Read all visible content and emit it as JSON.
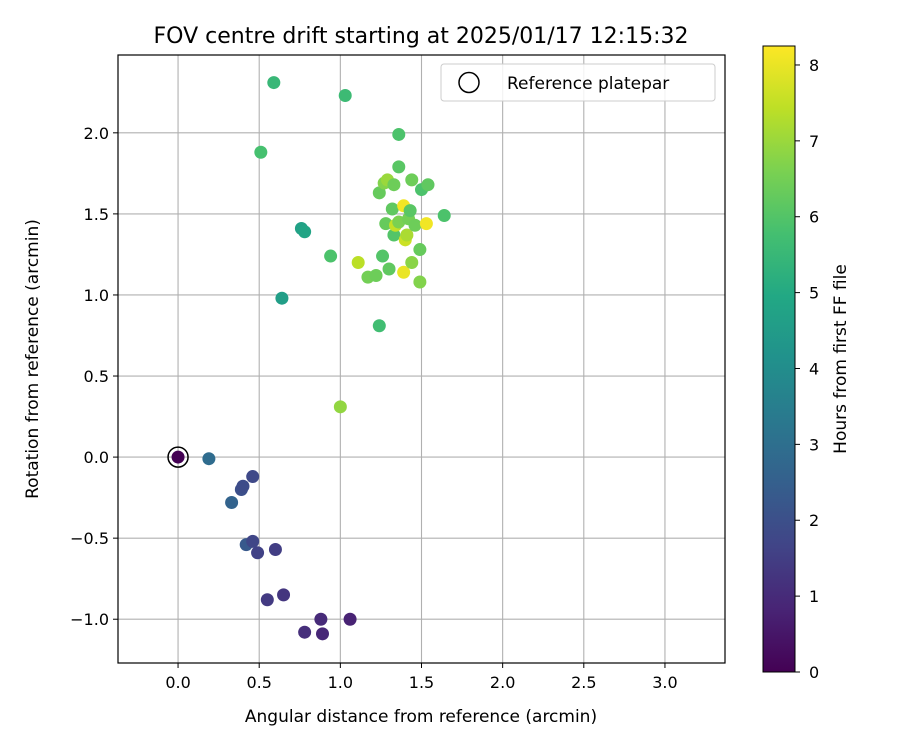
{
  "chart_data": {
    "type": "scatter",
    "title": "FOV centre drift starting at 2025/01/17 12:15:32",
    "xlabel": "Angular distance from reference (arcmin)",
    "ylabel": "Rotation from reference (arcmin)",
    "xlim": [
      -0.37,
      3.37
    ],
    "ylim": [
      -1.27,
      2.48
    ],
    "xticks": [
      0.0,
      0.5,
      1.0,
      1.5,
      2.0,
      2.5,
      3.0
    ],
    "xtick_labels": [
      "0.0",
      "0.5",
      "1.0",
      "1.5",
      "2.0",
      "2.5",
      "3.0"
    ],
    "yticks": [
      -1.0,
      -0.5,
      0.0,
      0.5,
      1.0,
      1.5,
      2.0
    ],
    "ytick_labels": [
      "−1.0",
      "−0.5",
      "0.0",
      "0.5",
      "1.0",
      "1.5",
      "2.0"
    ],
    "grid": true,
    "legend_position": "top-right",
    "legend": [
      {
        "label": "Reference platepar",
        "marker": "open-circle"
      }
    ],
    "colorbar": {
      "label": "Hours from first FF file",
      "range": [
        0,
        8.25
      ],
      "colormap": "viridis",
      "ticks": [
        0,
        1,
        2,
        3,
        4,
        5,
        6,
        7,
        8
      ],
      "tick_labels": [
        "0",
        "1",
        "2",
        "3",
        "4",
        "5",
        "6",
        "7",
        "8"
      ]
    },
    "reference_point": {
      "x": 0.0,
      "y": 0.0
    },
    "points": [
      {
        "x": 0.0,
        "y": 0.0,
        "hours": 0.0
      },
      {
        "x": 0.19,
        "y": -0.01,
        "hours": 2.9
      },
      {
        "x": 0.33,
        "y": -0.28,
        "hours": 2.6
      },
      {
        "x": 0.39,
        "y": -0.2,
        "hours": 2.0
      },
      {
        "x": 0.4,
        "y": -0.18,
        "hours": 1.9
      },
      {
        "x": 0.46,
        "y": -0.12,
        "hours": 1.8
      },
      {
        "x": 0.42,
        "y": -0.54,
        "hours": 2.3
      },
      {
        "x": 0.46,
        "y": -0.52,
        "hours": 1.7
      },
      {
        "x": 0.49,
        "y": -0.59,
        "hours": 1.6
      },
      {
        "x": 0.6,
        "y": -0.57,
        "hours": 1.5
      },
      {
        "x": 0.55,
        "y": -0.88,
        "hours": 1.4
      },
      {
        "x": 0.65,
        "y": -0.85,
        "hours": 1.3
      },
      {
        "x": 0.78,
        "y": -1.08,
        "hours": 1.1
      },
      {
        "x": 0.88,
        "y": -1.0,
        "hours": 1.0
      },
      {
        "x": 0.89,
        "y": -1.09,
        "hours": 0.9
      },
      {
        "x": 1.06,
        "y": -1.0,
        "hours": 0.8
      },
      {
        "x": 0.64,
        "y": 0.98,
        "hours": 4.6
      },
      {
        "x": 0.76,
        "y": 1.41,
        "hours": 4.7
      },
      {
        "x": 0.78,
        "y": 1.39,
        "hours": 4.8
      },
      {
        "x": 0.94,
        "y": 1.24,
        "hours": 5.9
      },
      {
        "x": 1.0,
        "y": 0.31,
        "hours": 6.9
      },
      {
        "x": 0.51,
        "y": 1.88,
        "hours": 5.8
      },
      {
        "x": 0.59,
        "y": 2.31,
        "hours": 5.5
      },
      {
        "x": 1.03,
        "y": 2.23,
        "hours": 5.6
      },
      {
        "x": 1.24,
        "y": 0.81,
        "hours": 5.7
      },
      {
        "x": 1.11,
        "y": 1.2,
        "hours": 7.4
      },
      {
        "x": 1.17,
        "y": 1.11,
        "hours": 6.5
      },
      {
        "x": 1.22,
        "y": 1.12,
        "hours": 6.4
      },
      {
        "x": 1.26,
        "y": 1.24,
        "hours": 6.0
      },
      {
        "x": 1.3,
        "y": 1.16,
        "hours": 6.2
      },
      {
        "x": 1.39,
        "y": 1.14,
        "hours": 8.0
      },
      {
        "x": 1.44,
        "y": 1.2,
        "hours": 6.8
      },
      {
        "x": 1.49,
        "y": 1.08,
        "hours": 6.7
      },
      {
        "x": 1.49,
        "y": 1.28,
        "hours": 6.3
      },
      {
        "x": 1.28,
        "y": 1.44,
        "hours": 6.3
      },
      {
        "x": 1.32,
        "y": 1.53,
        "hours": 6.2
      },
      {
        "x": 1.33,
        "y": 1.37,
        "hours": 6.0
      },
      {
        "x": 1.34,
        "y": 1.43,
        "hours": 7.5
      },
      {
        "x": 1.36,
        "y": 1.45,
        "hours": 6.6
      },
      {
        "x": 1.39,
        "y": 1.55,
        "hours": 8.1
      },
      {
        "x": 1.4,
        "y": 1.34,
        "hours": 7.6
      },
      {
        "x": 1.41,
        "y": 1.37,
        "hours": 7.2
      },
      {
        "x": 1.42,
        "y": 1.47,
        "hours": 6.5
      },
      {
        "x": 1.43,
        "y": 1.52,
        "hours": 6.1
      },
      {
        "x": 1.46,
        "y": 1.43,
        "hours": 6.4
      },
      {
        "x": 1.53,
        "y": 1.44,
        "hours": 8.1
      },
      {
        "x": 1.24,
        "y": 1.63,
        "hours": 6.3
      },
      {
        "x": 1.27,
        "y": 1.69,
        "hours": 6.7
      },
      {
        "x": 1.29,
        "y": 1.71,
        "hours": 7.0
      },
      {
        "x": 1.33,
        "y": 1.68,
        "hours": 6.4
      },
      {
        "x": 1.36,
        "y": 1.79,
        "hours": 6.1
      },
      {
        "x": 1.44,
        "y": 1.71,
        "hours": 6.4
      },
      {
        "x": 1.5,
        "y": 1.65,
        "hours": 5.9
      },
      {
        "x": 1.54,
        "y": 1.68,
        "hours": 6.2
      },
      {
        "x": 1.64,
        "y": 1.49,
        "hours": 5.9
      },
      {
        "x": 1.36,
        "y": 1.99,
        "hours": 5.9
      }
    ]
  }
}
